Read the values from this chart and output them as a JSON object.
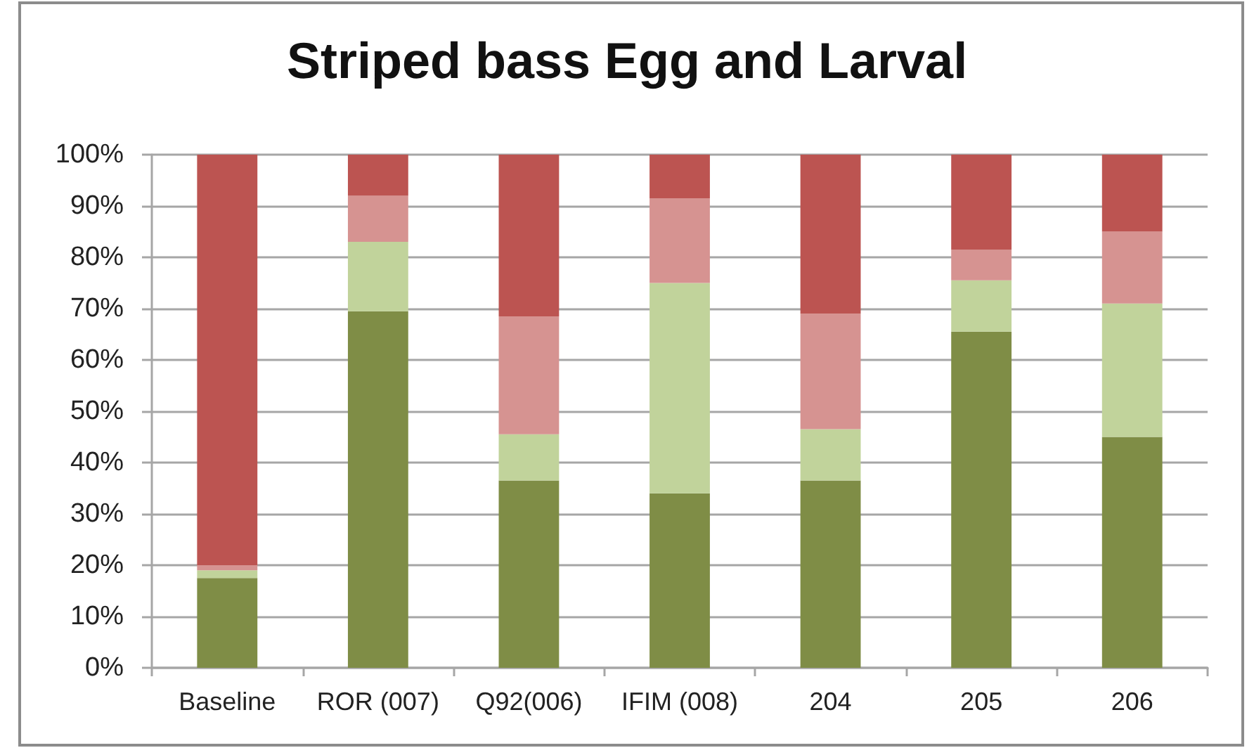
{
  "chart_data": {
    "type": "bar",
    "title": "Striped bass Egg and Larval",
    "categories": [
      "Baseline",
      "ROR (007)",
      "Q92(006)",
      "IFIM (008)",
      "204",
      "205",
      "206"
    ],
    "stacked": true,
    "series": [
      {
        "color": "#7f8d46",
        "values": [
          17.5,
          69.5,
          36.5,
          34,
          36.5,
          65.5,
          45
        ]
      },
      {
        "color": "#c1d39b",
        "values": [
          1.5,
          13.5,
          9,
          41,
          10,
          10,
          26
        ]
      },
      {
        "color": "#d69391",
        "values": [
          1,
          9,
          23,
          16.5,
          22.5,
          6,
          14
        ]
      },
      {
        "color": "#bc5451",
        "values": [
          80,
          8,
          31.5,
          8.5,
          31,
          18.5,
          15
        ]
      }
    ],
    "ylim": [
      0,
      100
    ],
    "yticks": [
      {
        "value": 0,
        "label": "0%"
      },
      {
        "value": 10,
        "label": "10%"
      },
      {
        "value": 20,
        "label": "20%"
      },
      {
        "value": 30,
        "label": "30%"
      },
      {
        "value": 40,
        "label": "40%"
      },
      {
        "value": 50,
        "label": "50%"
      },
      {
        "value": 60,
        "label": "60%"
      },
      {
        "value": 70,
        "label": "70%"
      },
      {
        "value": 80,
        "label": "80%"
      },
      {
        "value": 90,
        "label": "90%"
      },
      {
        "value": 100,
        "label": "100%"
      }
    ],
    "grid": "y"
  }
}
